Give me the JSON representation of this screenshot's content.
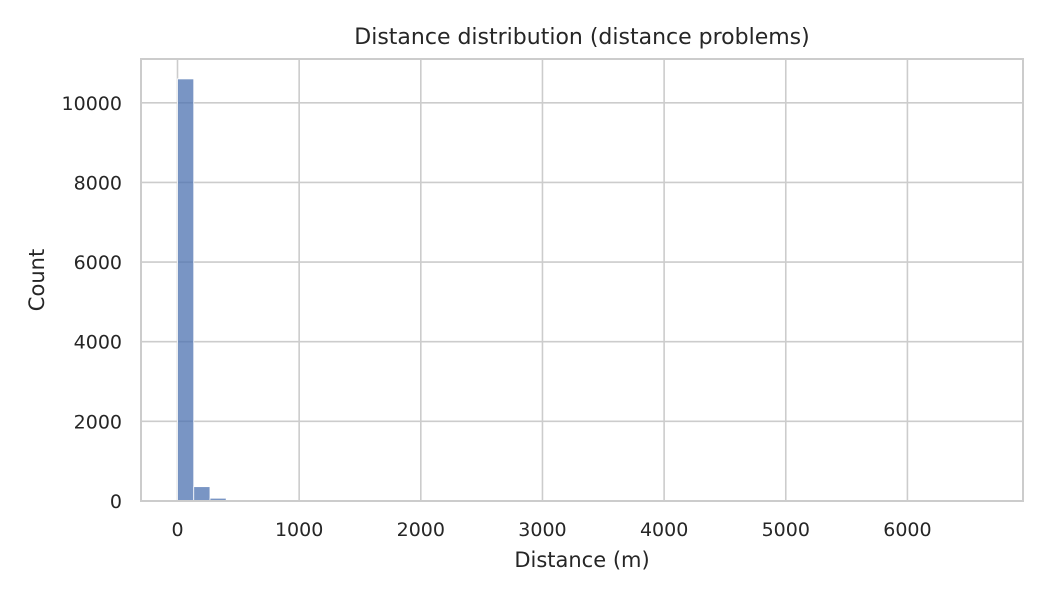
{
  "chart_data": {
    "type": "bar",
    "title": "Distance distribution (distance problems)",
    "xlabel": "Distance (m)",
    "ylabel": "Count",
    "xlim": [
      -300,
      6950
    ],
    "ylim": [
      0,
      11100
    ],
    "xticks": [
      0,
      1000,
      2000,
      3000,
      4000,
      5000,
      6000
    ],
    "yticks": [
      0,
      2000,
      4000,
      6000,
      8000,
      10000
    ],
    "xtick_labels": [
      "0",
      "1000",
      "2000",
      "3000",
      "4000",
      "5000",
      "6000"
    ],
    "ytick_labels": [
      "0",
      "2000",
      "4000",
      "6000",
      "8000",
      "10000"
    ],
    "grid": true,
    "bin_width": 133.5,
    "bins": [
      {
        "x0": 0,
        "value": 10600
      },
      {
        "x0": 133.5,
        "value": 360
      },
      {
        "x0": 267,
        "value": 70
      },
      {
        "x0": 400.5,
        "value": 25
      },
      {
        "x0": 534,
        "value": 12
      },
      {
        "x0": 667.5,
        "value": 8
      },
      {
        "x0": 801,
        "value": 5
      },
      {
        "x0": 934.5,
        "value": 4
      },
      {
        "x0": 1068,
        "value": 3
      },
      {
        "x0": 1201.5,
        "value": 2
      },
      {
        "x0": 1335,
        "value": 2
      },
      {
        "x0": 1468.5,
        "value": 1
      },
      {
        "x0": 1602,
        "value": 1
      },
      {
        "x0": 1735.5,
        "value": 1
      },
      {
        "x0": 1869,
        "value": 1
      },
      {
        "x0": 2136,
        "value": 1
      },
      {
        "x0": 2403,
        "value": 1
      },
      {
        "x0": 2937,
        "value": 1
      },
      {
        "x0": 3471,
        "value": 1
      },
      {
        "x0": 4005,
        "value": 1
      },
      {
        "x0": 4539,
        "value": 1
      },
      {
        "x0": 5340,
        "value": 1
      },
      {
        "x0": 6541,
        "value": 1
      }
    ]
  }
}
